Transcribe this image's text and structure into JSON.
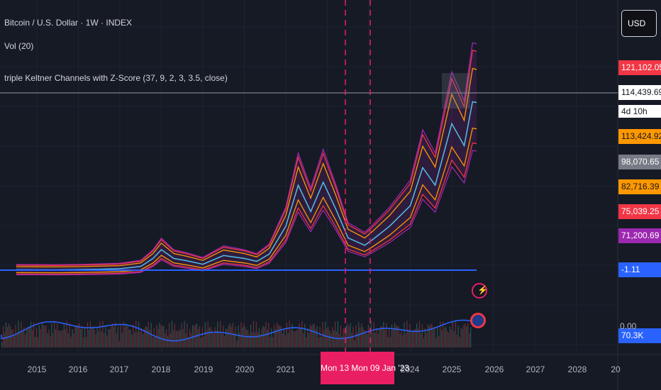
{
  "legend": {
    "title": "Bitcoin / U.S. Dollar · 1W · INDEX",
    "volume": "Vol (20)",
    "indicator": "triple Keltner Channels with  Z-Score (37, 9, 2, 3, 3.5, close)"
  },
  "currency_button": "USD",
  "price_tags": [
    {
      "label": "121,102.05",
      "bg": "#f23645",
      "fg": "#ffffff"
    },
    {
      "label": "114,439.69",
      "bg": "#ffffff",
      "fg": "#131722"
    },
    {
      "label": "4d 10h",
      "bg": "#ffffff",
      "fg": "#131722"
    },
    {
      "label": "113,424.92",
      "bg": "#ff9800",
      "fg": "#131722"
    },
    {
      "label": "98,070.65",
      "bg": "#787b86",
      "fg": "#ffffff"
    },
    {
      "label": "82,716.39",
      "bg": "#ff9800",
      "fg": "#131722"
    },
    {
      "label": "75,039.25",
      "bg": "#f23645",
      "fg": "#ffffff"
    },
    {
      "label": "71,200.69",
      "bg": "#9c27b0",
      "fg": "#ffffff"
    },
    {
      "label": "-1.11",
      "bg": "#2962ff",
      "fg": "#ffffff"
    },
    {
      "label": "70.3K",
      "bg": "#2962ff",
      "fg": "#ffffff"
    }
  ],
  "volume_axis_label": "0.00",
  "time_axis": {
    "years": [
      "2015",
      "2016",
      "2017",
      "2018",
      "2019",
      "2020",
      "2021",
      "2024",
      "2025",
      "2026",
      "2027",
      "2028",
      "20"
    ],
    "highlight_label": "Mon 13  Mon 09 Jan '23"
  },
  "colors": {
    "background": "#161a25",
    "price": "#4fc3e8",
    "outer_band": "#9c27b0",
    "mid_band": "#f23645",
    "inner_band": "#ff9800",
    "basis": "#787b86",
    "zscore": "#2962ff",
    "marker": "#e91e63"
  },
  "chart_data": {
    "type": "line",
    "x": [
      2014.5,
      2015,
      2015.5,
      2016,
      2016.5,
      2017,
      2017.5,
      2017.8,
      2018,
      2018.3,
      2018.6,
      2019,
      2019.5,
      2020,
      2020.3,
      2020.6,
      2021,
      2021.3,
      2021.6,
      2021.9,
      2022.2,
      2022.5,
      2022.9,
      2023.1,
      2023.5,
      2024,
      2024.3,
      2024.6,
      2025,
      2025.3,
      2025.5,
      2025.6
    ],
    "series": [
      {
        "values": [
          350,
          300,
          250,
          420,
          650,
          1000,
          2500,
          8000,
          14000,
          8000,
          6500,
          4000,
          10000,
          8000,
          6000,
          11000,
          30000,
          58000,
          40000,
          60000,
          42000,
          22000,
          17000,
          21000,
          30000,
          44000,
          70000,
          58000,
          100000,
          85000,
          115000,
          114439.69
        ]
      }
    ],
    "ylim": [
      0,
      140000
    ],
    "xlim": [
      2014.0,
      2029.2
    ]
  }
}
